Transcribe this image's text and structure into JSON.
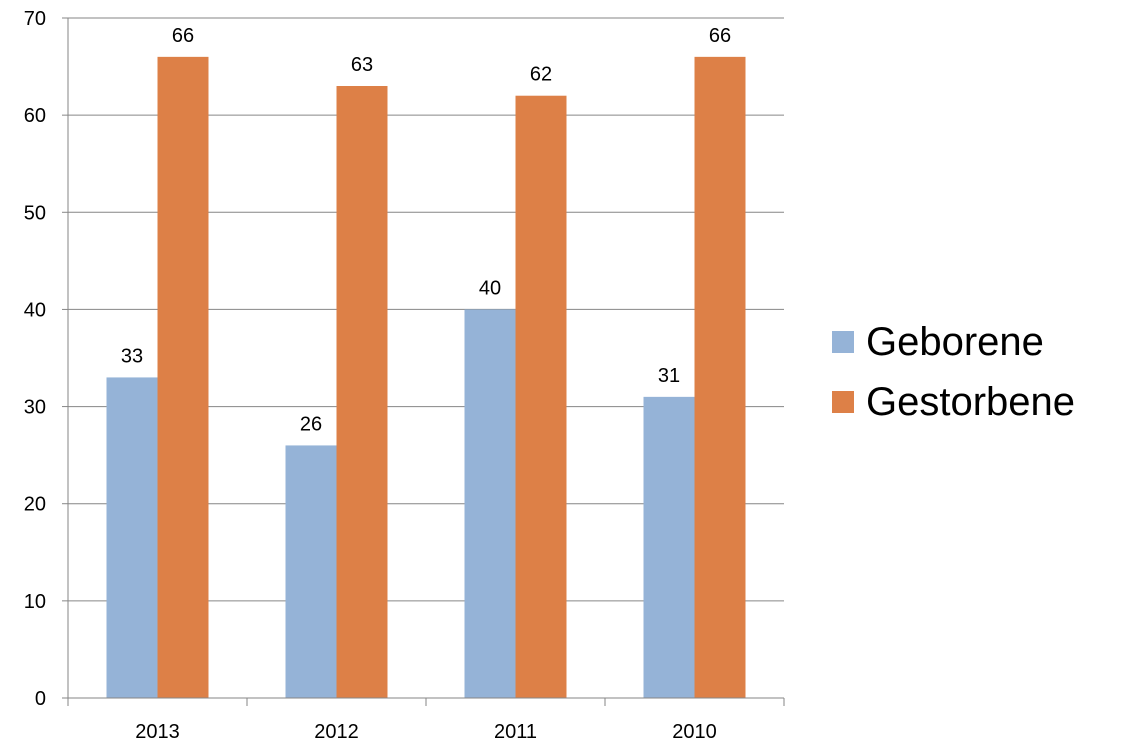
{
  "chart_data": {
    "type": "bar",
    "categories": [
      "2013",
      "2012",
      "2011",
      "2010"
    ],
    "series": [
      {
        "name": "Geborene",
        "values": [
          33,
          26,
          40,
          31
        ],
        "color": "#95B3D7"
      },
      {
        "name": "Gestorbene",
        "values": [
          66,
          63,
          62,
          66
        ],
        "color": "#DD8047"
      }
    ],
    "ylim": [
      0,
      70
    ],
    "yticks": [
      0,
      10,
      20,
      30,
      40,
      50,
      60,
      70
    ],
    "grid": true,
    "legend_position": "right",
    "data_labels": true
  }
}
